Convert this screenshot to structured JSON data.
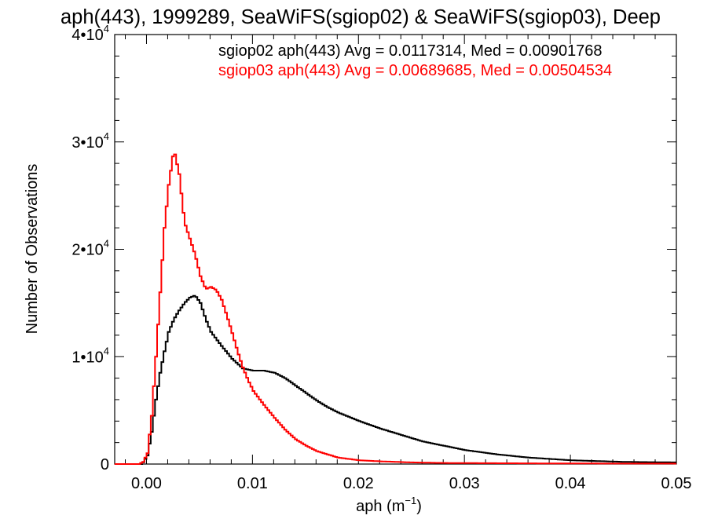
{
  "chart_data": {
    "type": "line",
    "title": "aph(443), 1999289, SeaWiFS(sgiop02) & SeaWiFS(sgiop03), Deep",
    "xlabel_main": "aph (m",
    "xlabel_exp": "−1",
    "xlabel_close": ")",
    "ylabel": "Number of Observations",
    "xlim": [
      -0.003,
      0.05
    ],
    "ylim": [
      0,
      40000
    ],
    "x_ticks": [
      0.0,
      0.01,
      0.02,
      0.03,
      0.04,
      0.05
    ],
    "x_tick_labels": [
      "0.00",
      "0.01",
      "0.02",
      "0.03",
      "0.04",
      "0.05"
    ],
    "y_ticks": [
      0,
      10000,
      20000,
      30000,
      40000
    ],
    "y_tick_labels": [
      {
        "base": "0",
        "exp": ""
      },
      {
        "base": "1•10",
        "exp": "4"
      },
      {
        "base": "2•10",
        "exp": "4"
      },
      {
        "base": "3•10",
        "exp": "4"
      },
      {
        "base": "4•10",
        "exp": "4"
      }
    ],
    "colors": {
      "sgiop02": "#000000",
      "sgiop03": "#ff0000"
    },
    "annotations": [
      {
        "text": "sgiop02 aph(443) Avg = 0.0117314, Med = 0.00901768",
        "color": "#000000"
      },
      {
        "text": "sgiop03 aph(443) Avg = 0.00689685, Med = 0.00504534",
        "color": "#ff0000"
      }
    ],
    "series": [
      {
        "name": "sgiop02",
        "color": "#000000",
        "x": [
          -0.003,
          -0.0005,
          0.0,
          0.0004,
          0.0008,
          0.0012,
          0.0016,
          0.002,
          0.0025,
          0.003,
          0.0035,
          0.004,
          0.0045,
          0.005,
          0.0055,
          0.006,
          0.007,
          0.008,
          0.009,
          0.01,
          0.011,
          0.012,
          0.013,
          0.014,
          0.015,
          0.016,
          0.017,
          0.018,
          0.019,
          0.02,
          0.022,
          0.024,
          0.026,
          0.028,
          0.03,
          0.033,
          0.036,
          0.04,
          0.045,
          0.05
        ],
        "y": [
          0,
          0,
          800,
          3000,
          6000,
          8500,
          10500,
          12300,
          13500,
          14300,
          15000,
          15500,
          15700,
          15000,
          13500,
          12300,
          11000,
          9800,
          8900,
          8700,
          8700,
          8500,
          8000,
          7300,
          6600,
          5900,
          5300,
          4800,
          4400,
          4000,
          3300,
          2700,
          2100,
          1700,
          1300,
          900,
          600,
          350,
          200,
          150
        ]
      },
      {
        "name": "sgiop03",
        "color": "#ff0000",
        "x": [
          -0.003,
          -0.0008,
          -0.0004,
          0.0,
          0.0004,
          0.0008,
          0.0012,
          0.0016,
          0.002,
          0.0025,
          0.003,
          0.0035,
          0.004,
          0.0045,
          0.005,
          0.0055,
          0.006,
          0.0065,
          0.007,
          0.0075,
          0.008,
          0.0085,
          0.009,
          0.0095,
          0.01,
          0.011,
          0.012,
          0.013,
          0.014,
          0.015,
          0.016,
          0.017,
          0.018,
          0.02,
          0.022,
          0.025,
          0.028,
          0.032,
          0.04,
          0.05
        ],
        "y": [
          0,
          0,
          200,
          1000,
          4500,
          10000,
          16000,
          22000,
          26000,
          29300,
          27000,
          22500,
          21000,
          19500,
          17500,
          16300,
          16500,
          16200,
          15300,
          13800,
          12200,
          10500,
          9000,
          7800,
          6800,
          5500,
          4300,
          3200,
          2300,
          1700,
          1200,
          900,
          600,
          350,
          250,
          150,
          100,
          80,
          50,
          40
        ]
      }
    ]
  }
}
